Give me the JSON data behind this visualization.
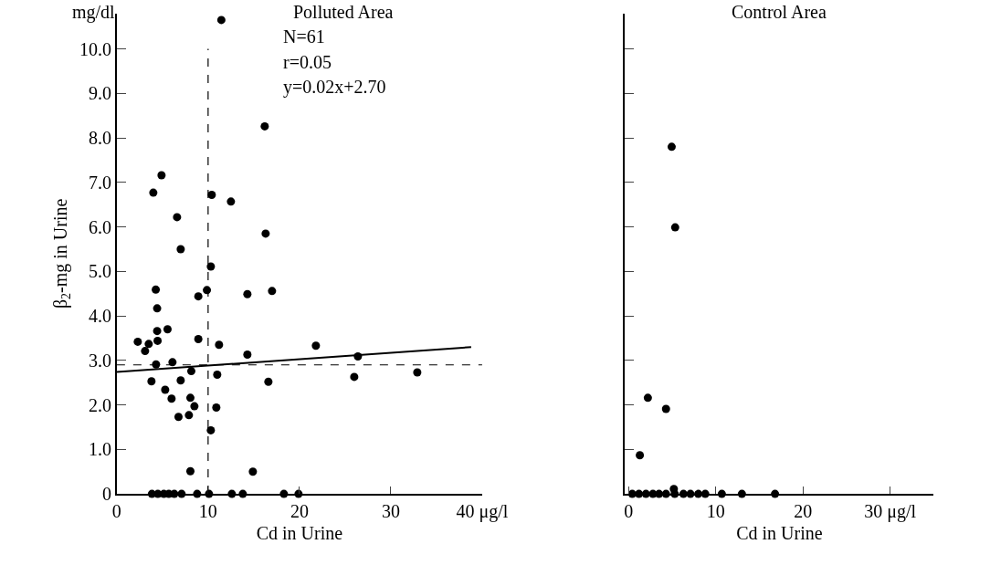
{
  "chart_data": [
    {
      "type": "scatter",
      "title": "Polluted Area",
      "xlabel": "Cd in Urine",
      "ylabel": "β$_{2}$-mg in Urine",
      "annotations": [
        "mg/dl",
        "N=61",
        "r=0.05",
        "y=0.02x+2.70"
      ],
      "series": [
        {
          "color": "#000000",
          "x": [
            11.45,
            16.2,
            4.9,
            4.0,
            10.4,
            12.5,
            6.6,
            7.0,
            16.3,
            10.3,
            4.27,
            8.93,
            9.87,
            14.3,
            17.0,
            4.42,
            4.42,
            5.56,
            2.3,
            3.5,
            3.1,
            4.47,
            8.93,
            11.2,
            14.3,
            4.3,
            6.1,
            8.16,
            3.8,
            7.0,
            11.0,
            16.6,
            5.3,
            6.0,
            8.06,
            8.5,
            10.9,
            6.76,
            7.9,
            10.3,
            8.06,
            14.9,
            3.85,
            4.5,
            5.15,
            5.7,
            6.3,
            7.1,
            8.8,
            10.1,
            12.6,
            13.8,
            18.3,
            19.9,
            21.8,
            26.4,
            26.0,
            32.9
          ],
          "values": [
            10.65,
            8.26,
            7.16,
            6.77,
            6.72,
            6.57,
            6.22,
            5.5,
            5.85,
            5.11,
            4.59,
            4.44,
            4.58,
            4.49,
            4.56,
            4.17,
            3.66,
            3.7,
            3.42,
            3.37,
            3.21,
            3.44,
            3.48,
            3.35,
            3.13,
            2.91,
            2.96,
            2.76,
            2.53,
            2.55,
            2.68,
            2.52,
            2.34,
            2.14,
            2.16,
            1.97,
            1.94,
            1.73,
            1.77,
            1.43,
            0.51,
            0.5,
            0,
            0,
            0,
            0,
            0,
            0,
            0,
            0,
            0,
            0,
            0,
            0,
            3.33,
            3.09,
            2.63,
            2.73
          ]
        },
        {
          "type": "line",
          "marker": "none",
          "color": "#000000",
          "x": [
            0,
            38.8
          ],
          "values": [
            2.74,
            3.3
          ]
        }
      ],
      "ref_lines": [
        {
          "axis": "x",
          "value": 10,
          "line_style": "dashed"
        },
        {
          "axis": "y",
          "value": 2.9,
          "line_style": "dashed"
        }
      ],
      "xlim": [
        0,
        40
      ],
      "xticks": [
        0,
        10,
        20,
        30,
        {
          "value": 40,
          "label": "40 μg/l"
        }
      ],
      "ylim": [
        0,
        10.8
      ],
      "yticks": [
        0,
        {
          "value": 1,
          "label": "1.0"
        },
        {
          "value": 2,
          "label": "2.0"
        },
        {
          "value": 3,
          "label": "3.0"
        },
        {
          "value": 4,
          "label": "4.0"
        },
        {
          "value": 5,
          "label": "5.0"
        },
        {
          "value": 6,
          "label": "6.0"
        },
        {
          "value": 7,
          "label": "7.0"
        },
        {
          "value": 8,
          "label": "8.0"
        },
        {
          "value": 9,
          "label": "9.0"
        },
        {
          "value": 10,
          "label": "10.0"
        }
      ],
      "marker": "circle"
    },
    {
      "type": "scatter",
      "title": "Control Area",
      "xlabel": "Cd in Urine",
      "series": [
        {
          "color": "#000000",
          "x": [
            4.95,
            5.35,
            2.22,
            4.3,
            1.3,
            5.2,
            0.43,
            1.2,
            2.0,
            2.8,
            3.5,
            4.3,
            5.3,
            6.3,
            7.1,
            8.0,
            8.8,
            10.7,
            13.0,
            16.8
          ],
          "values": [
            7.8,
            5.99,
            2.16,
            1.91,
            0.87,
            0.11,
            0,
            0,
            0,
            0,
            0,
            0,
            0,
            0,
            0,
            0,
            0,
            0,
            0,
            0
          ]
        }
      ],
      "xlim": [
        -0.4,
        35
      ],
      "xticks": [
        0,
        10,
        20,
        {
          "value": 30,
          "label": "30 μg/l"
        }
      ],
      "ylim": [
        0,
        10.8
      ],
      "yticks": [
        {
          "value": 0,
          "label": null
        },
        {
          "value": 1,
          "label": null
        },
        {
          "value": 2,
          "label": null
        },
        {
          "value": 3,
          "label": null
        },
        {
          "value": 4,
          "label": null
        },
        {
          "value": 5,
          "label": null
        },
        {
          "value": 6,
          "label": null
        },
        {
          "value": 7,
          "label": null
        },
        {
          "value": 8,
          "label": null
        },
        {
          "value": 9,
          "label": null
        },
        {
          "value": 10,
          "label": null
        }
      ],
      "tick_labels": "x",
      "marker": "circle"
    }
  ]
}
